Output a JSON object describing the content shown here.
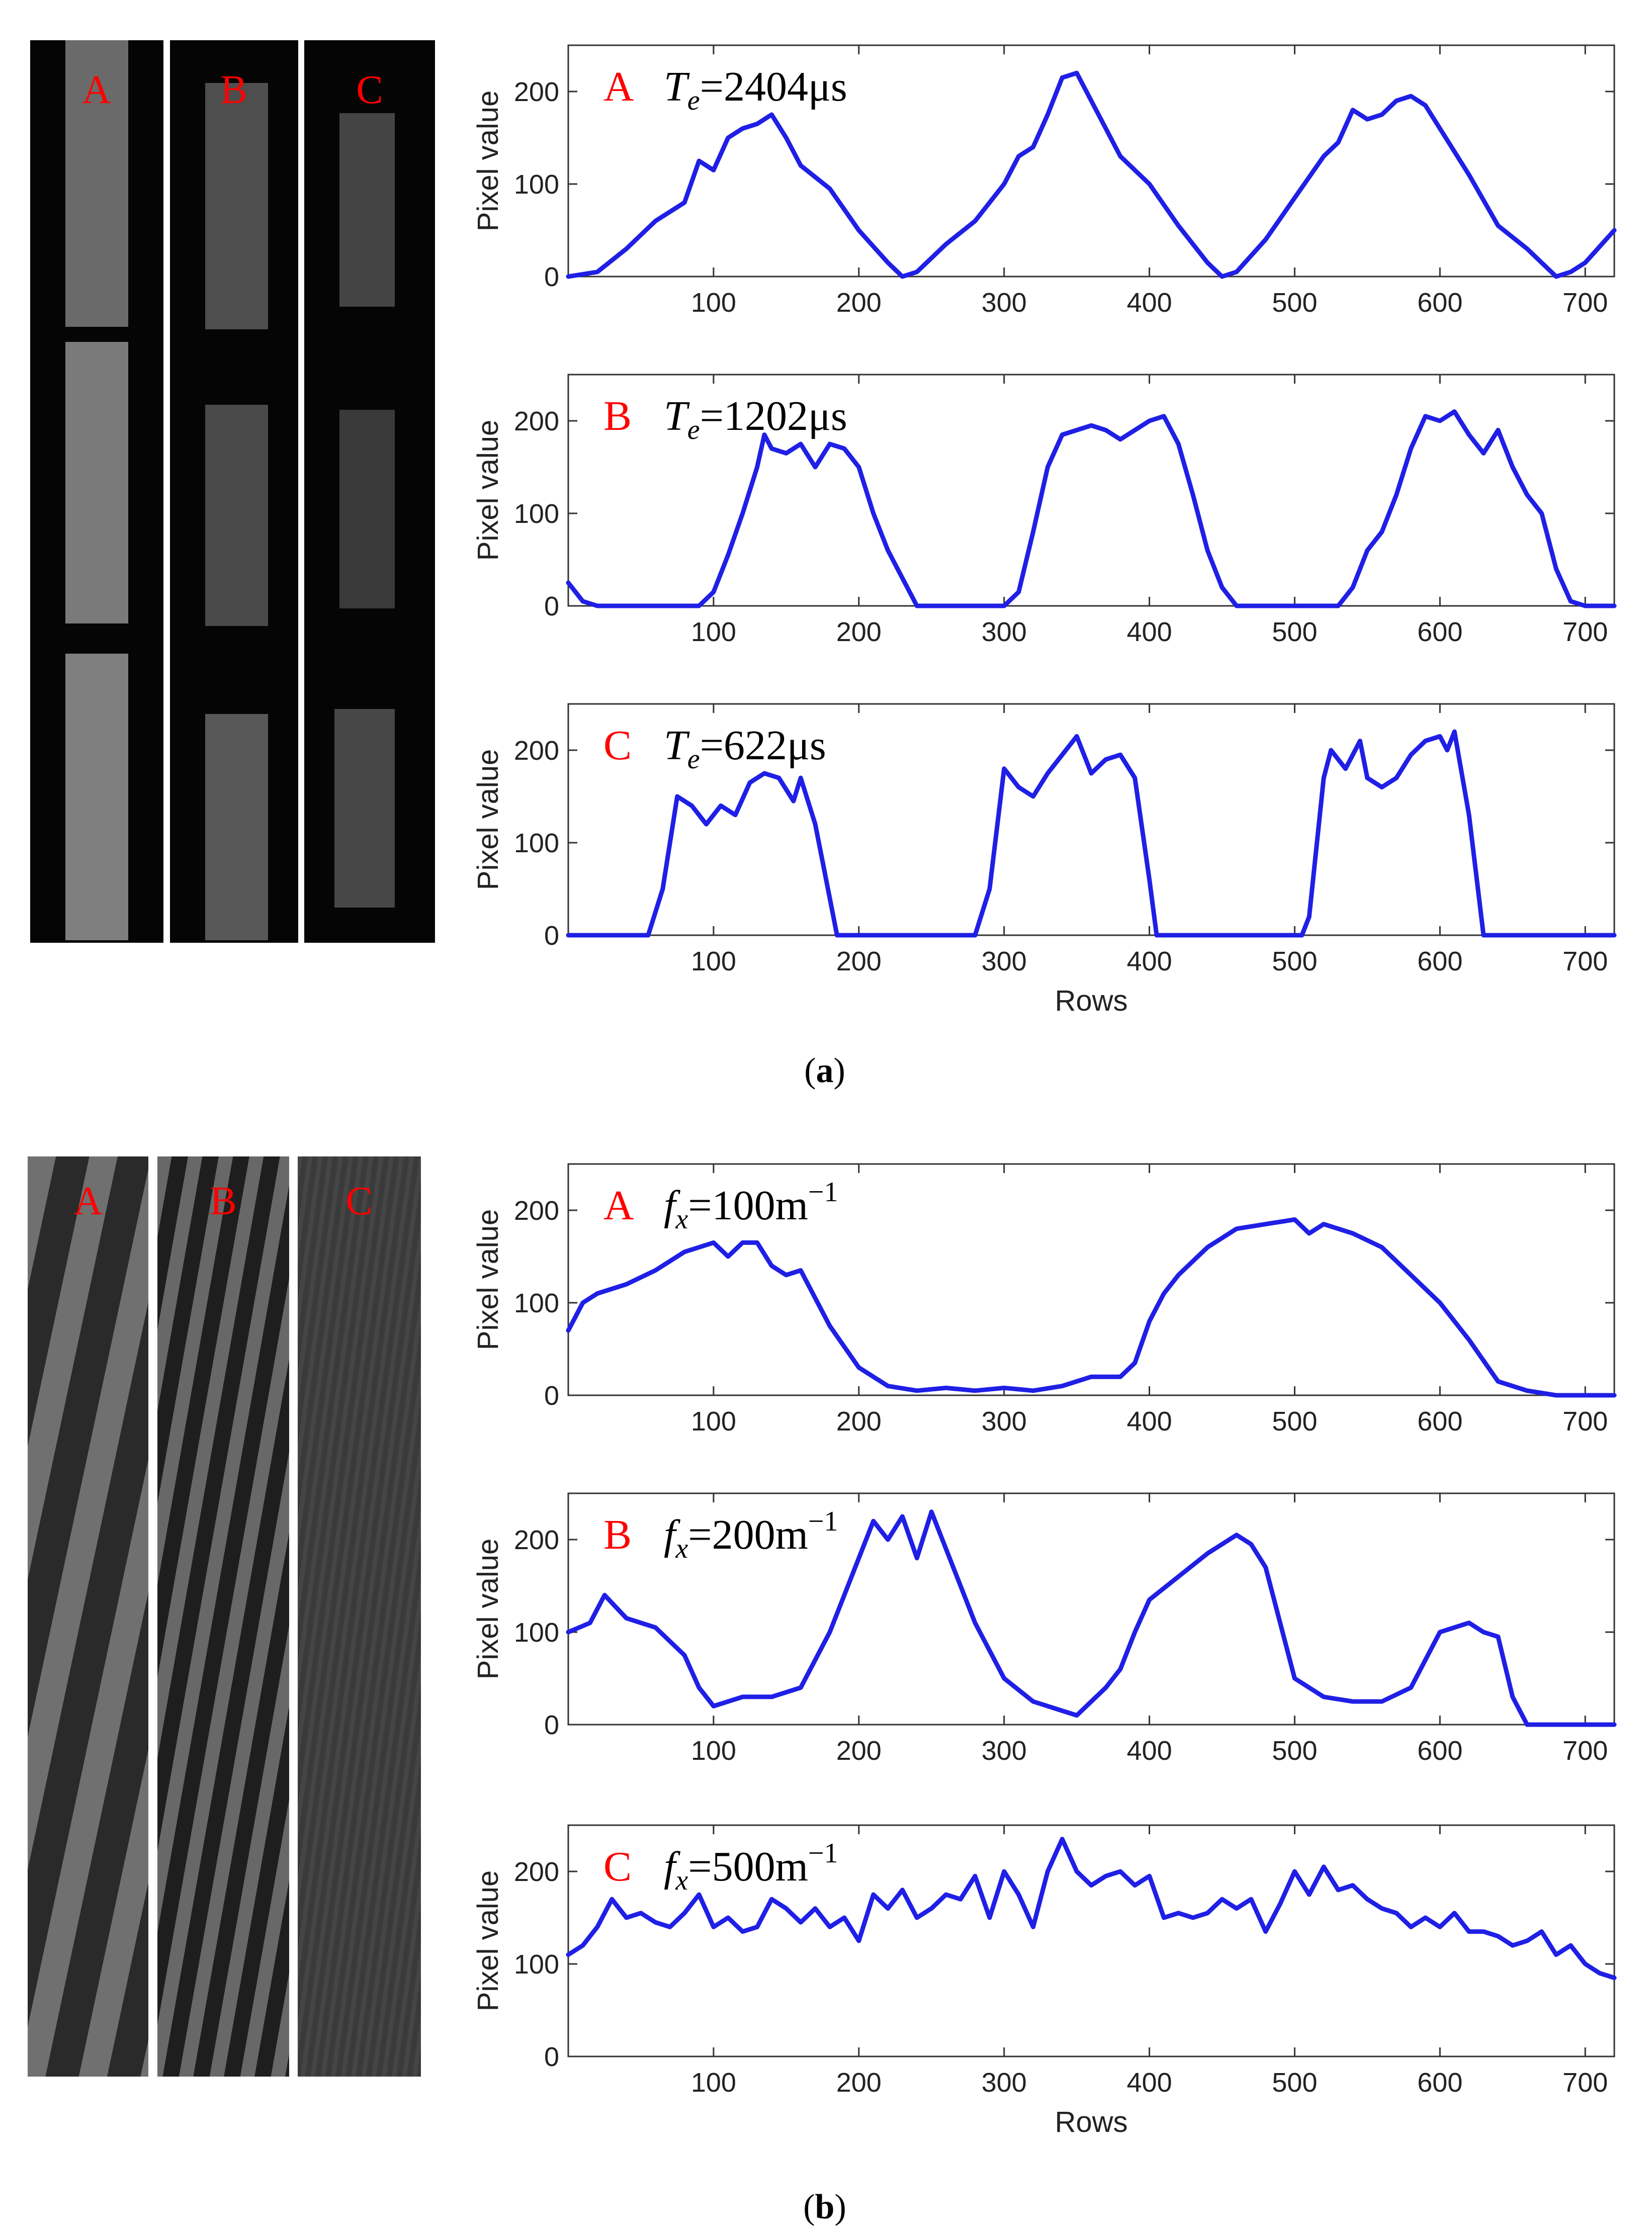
{
  "figure": {
    "sublabel_a": "a",
    "sublabel_b": "b"
  },
  "image_strips": [
    {
      "label": "A",
      "panel": "a"
    },
    {
      "label": "B",
      "panel": "a"
    },
    {
      "label": "C",
      "panel": "a"
    },
    {
      "label": "A",
      "panel": "b"
    },
    {
      "label": "B",
      "panel": "b"
    },
    {
      "label": "C",
      "panel": "b"
    }
  ],
  "colors": {
    "line": "#1f1fe6",
    "letter": "#ff0000",
    "axis": "#333333"
  },
  "chart_data": [
    {
      "type": "line",
      "panel": "a",
      "letter": "A",
      "annotation_symbol": "T",
      "annotation_sub": "e",
      "annotation_value": "=2404μs",
      "ylabel": "Pixel value",
      "xlabel": "",
      "xlim": [
        0,
        720
      ],
      "ylim": [
        0,
        250
      ],
      "xticks": [
        100,
        200,
        300,
        400,
        500,
        600,
        700
      ],
      "yticks": [
        0,
        100,
        200
      ],
      "series": [
        {
          "x": [
            0,
            20,
            40,
            60,
            80,
            90,
            100,
            110,
            120,
            130,
            140,
            150,
            160,
            180,
            200,
            220,
            230,
            240,
            260,
            280,
            300,
            310,
            320,
            330,
            340,
            350,
            360,
            380,
            400,
            420,
            440,
            450,
            460,
            480,
            500,
            520,
            530,
            540,
            550,
            560,
            570,
            580,
            590,
            600,
            620,
            640,
            660,
            680,
            690,
            700,
            720
          ],
          "y": [
            0,
            5,
            30,
            60,
            80,
            125,
            115,
            150,
            160,
            165,
            175,
            150,
            120,
            95,
            50,
            15,
            0,
            5,
            35,
            60,
            100,
            130,
            140,
            175,
            215,
            220,
            190,
            130,
            100,
            55,
            15,
            0,
            5,
            40,
            85,
            130,
            145,
            180,
            170,
            175,
            190,
            195,
            185,
            160,
            110,
            55,
            30,
            0,
            5,
            15,
            50
          ]
        }
      ]
    },
    {
      "type": "line",
      "panel": "a",
      "letter": "B",
      "annotation_symbol": "T",
      "annotation_sub": "e",
      "annotation_value": "=1202μs",
      "ylabel": "Pixel value",
      "xlabel": "",
      "xlim": [
        0,
        720
      ],
      "ylim": [
        0,
        250
      ],
      "xticks": [
        100,
        200,
        300,
        400,
        500,
        600,
        700
      ],
      "yticks": [
        0,
        100,
        200
      ],
      "series": [
        {
          "x": [
            0,
            10,
            20,
            90,
            100,
            110,
            120,
            130,
            135,
            140,
            150,
            160,
            170,
            180,
            190,
            200,
            210,
            220,
            230,
            240,
            300,
            310,
            320,
            330,
            340,
            350,
            360,
            370,
            380,
            390,
            400,
            410,
            420,
            430,
            440,
            450,
            460,
            470,
            530,
            540,
            550,
            560,
            570,
            580,
            590,
            600,
            610,
            620,
            630,
            640,
            650,
            660,
            670,
            680,
            690,
            700,
            720
          ],
          "y": [
            25,
            5,
            0,
            0,
            15,
            55,
            100,
            150,
            185,
            170,
            165,
            175,
            150,
            175,
            170,
            150,
            100,
            60,
            30,
            0,
            0,
            15,
            80,
            150,
            185,
            190,
            195,
            190,
            180,
            190,
            200,
            205,
            175,
            120,
            60,
            20,
            0,
            0,
            0,
            20,
            60,
            80,
            120,
            170,
            205,
            200,
            210,
            185,
            165,
            190,
            150,
            120,
            100,
            40,
            5,
            0,
            0
          ]
        }
      ]
    },
    {
      "type": "line",
      "panel": "a",
      "letter": "C",
      "annotation_symbol": "T",
      "annotation_sub": "e",
      "annotation_value": "=622μs",
      "ylabel": "Pixel value",
      "xlabel": "Rows",
      "xlim": [
        0,
        720
      ],
      "ylim": [
        0,
        250
      ],
      "xticks": [
        100,
        200,
        300,
        400,
        500,
        600,
        700
      ],
      "yticks": [
        0,
        100,
        200
      ],
      "series": [
        {
          "x": [
            0,
            55,
            65,
            75,
            85,
            95,
            105,
            115,
            125,
            135,
            145,
            155,
            160,
            170,
            180,
            185,
            280,
            290,
            300,
            310,
            320,
            330,
            340,
            350,
            360,
            370,
            380,
            390,
            400,
            405,
            505,
            510,
            520,
            525,
            535,
            545,
            550,
            560,
            570,
            580,
            590,
            600,
            605,
            610,
            620,
            630,
            720
          ],
          "y": [
            0,
            0,
            50,
            150,
            140,
            120,
            140,
            130,
            165,
            175,
            170,
            145,
            170,
            120,
            40,
            0,
            0,
            50,
            180,
            160,
            150,
            175,
            195,
            215,
            175,
            190,
            195,
            170,
            60,
            0,
            0,
            20,
            170,
            200,
            180,
            210,
            170,
            160,
            170,
            195,
            210,
            215,
            200,
            220,
            130,
            0,
            0
          ]
        }
      ]
    },
    {
      "type": "line",
      "panel": "b",
      "letter": "A",
      "annotation_symbol": "f",
      "annotation_sub": "x",
      "annotation_value": "=100m",
      "annotation_sup": "−1",
      "ylabel": "Pixel value",
      "xlabel": "",
      "xlim": [
        0,
        720
      ],
      "ylim": [
        0,
        250
      ],
      "xticks": [
        100,
        200,
        300,
        400,
        500,
        600,
        700
      ],
      "yticks": [
        0,
        100,
        200
      ],
      "series": [
        {
          "x": [
            0,
            10,
            20,
            40,
            60,
            80,
            100,
            110,
            120,
            130,
            140,
            150,
            160,
            180,
            200,
            220,
            240,
            260,
            280,
            300,
            320,
            340,
            360,
            380,
            390,
            400,
            410,
            420,
            440,
            460,
            480,
            500,
            510,
            520,
            540,
            560,
            580,
            600,
            620,
            640,
            660,
            680,
            700,
            720
          ],
          "y": [
            70,
            100,
            110,
            120,
            135,
            155,
            165,
            150,
            165,
            165,
            140,
            130,
            135,
            75,
            30,
            10,
            5,
            8,
            5,
            8,
            5,
            10,
            20,
            20,
            35,
            80,
            110,
            130,
            160,
            180,
            185,
            190,
            175,
            185,
            175,
            160,
            130,
            100,
            60,
            15,
            5,
            0,
            0,
            0
          ]
        }
      ]
    },
    {
      "type": "line",
      "panel": "b",
      "letter": "B",
      "annotation_symbol": "f",
      "annotation_sub": "x",
      "annotation_value": "=200m",
      "annotation_sup": "−1",
      "ylabel": "Pixel value",
      "xlabel": "",
      "xlim": [
        0,
        720
      ],
      "ylim": [
        0,
        250
      ],
      "xticks": [
        100,
        200,
        300,
        400,
        500,
        600,
        700
      ],
      "yticks": [
        0,
        100,
        200
      ],
      "series": [
        {
          "x": [
            0,
            15,
            25,
            40,
            60,
            80,
            90,
            100,
            120,
            140,
            160,
            180,
            200,
            210,
            220,
            230,
            240,
            250,
            260,
            280,
            300,
            320,
            340,
            350,
            370,
            380,
            390,
            400,
            420,
            440,
            460,
            470,
            480,
            500,
            520,
            540,
            560,
            580,
            600,
            610,
            620,
            630,
            640,
            650,
            660,
            680,
            700,
            720
          ],
          "y": [
            100,
            110,
            140,
            115,
            105,
            75,
            40,
            20,
            30,
            30,
            40,
            100,
            180,
            220,
            200,
            225,
            180,
            230,
            190,
            110,
            50,
            25,
            15,
            10,
            40,
            60,
            100,
            135,
            160,
            185,
            205,
            195,
            170,
            50,
            30,
            25,
            25,
            40,
            100,
            105,
            110,
            100,
            95,
            30,
            0,
            0,
            0,
            0
          ]
        }
      ]
    },
    {
      "type": "line",
      "panel": "b",
      "letter": "C",
      "annotation_symbol": "f",
      "annotation_sub": "x",
      "annotation_value": "=500m",
      "annotation_sup": "−1",
      "ylabel": "Pixel value",
      "xlabel": "Rows",
      "xlim": [
        0,
        720
      ],
      "ylim": [
        0,
        250
      ],
      "xticks": [
        100,
        200,
        300,
        400,
        500,
        600,
        700
      ],
      "yticks": [
        0,
        100,
        200
      ],
      "series": [
        {
          "x": [
            0,
            10,
            20,
            30,
            40,
            50,
            60,
            70,
            80,
            90,
            100,
            110,
            120,
            130,
            140,
            150,
            160,
            170,
            180,
            190,
            200,
            210,
            220,
            230,
            240,
            250,
            260,
            270,
            280,
            290,
            300,
            310,
            320,
            330,
            340,
            350,
            360,
            370,
            380,
            390,
            400,
            410,
            420,
            430,
            440,
            450,
            460,
            470,
            480,
            490,
            500,
            510,
            520,
            530,
            540,
            550,
            560,
            570,
            580,
            590,
            600,
            610,
            620,
            630,
            640,
            650,
            660,
            670,
            680,
            690,
            700,
            710,
            720
          ],
          "y": [
            110,
            120,
            140,
            170,
            150,
            155,
            145,
            140,
            155,
            175,
            140,
            150,
            135,
            140,
            170,
            160,
            145,
            160,
            140,
            150,
            125,
            175,
            160,
            180,
            150,
            160,
            175,
            170,
            195,
            150,
            200,
            175,
            140,
            200,
            235,
            200,
            185,
            195,
            200,
            185,
            195,
            150,
            155,
            150,
            155,
            170,
            160,
            170,
            135,
            165,
            200,
            175,
            205,
            180,
            185,
            170,
            160,
            155,
            140,
            150,
            140,
            155,
            135,
            135,
            130,
            120,
            125,
            135,
            110,
            120,
            100,
            90,
            85
          ]
        }
      ]
    }
  ]
}
